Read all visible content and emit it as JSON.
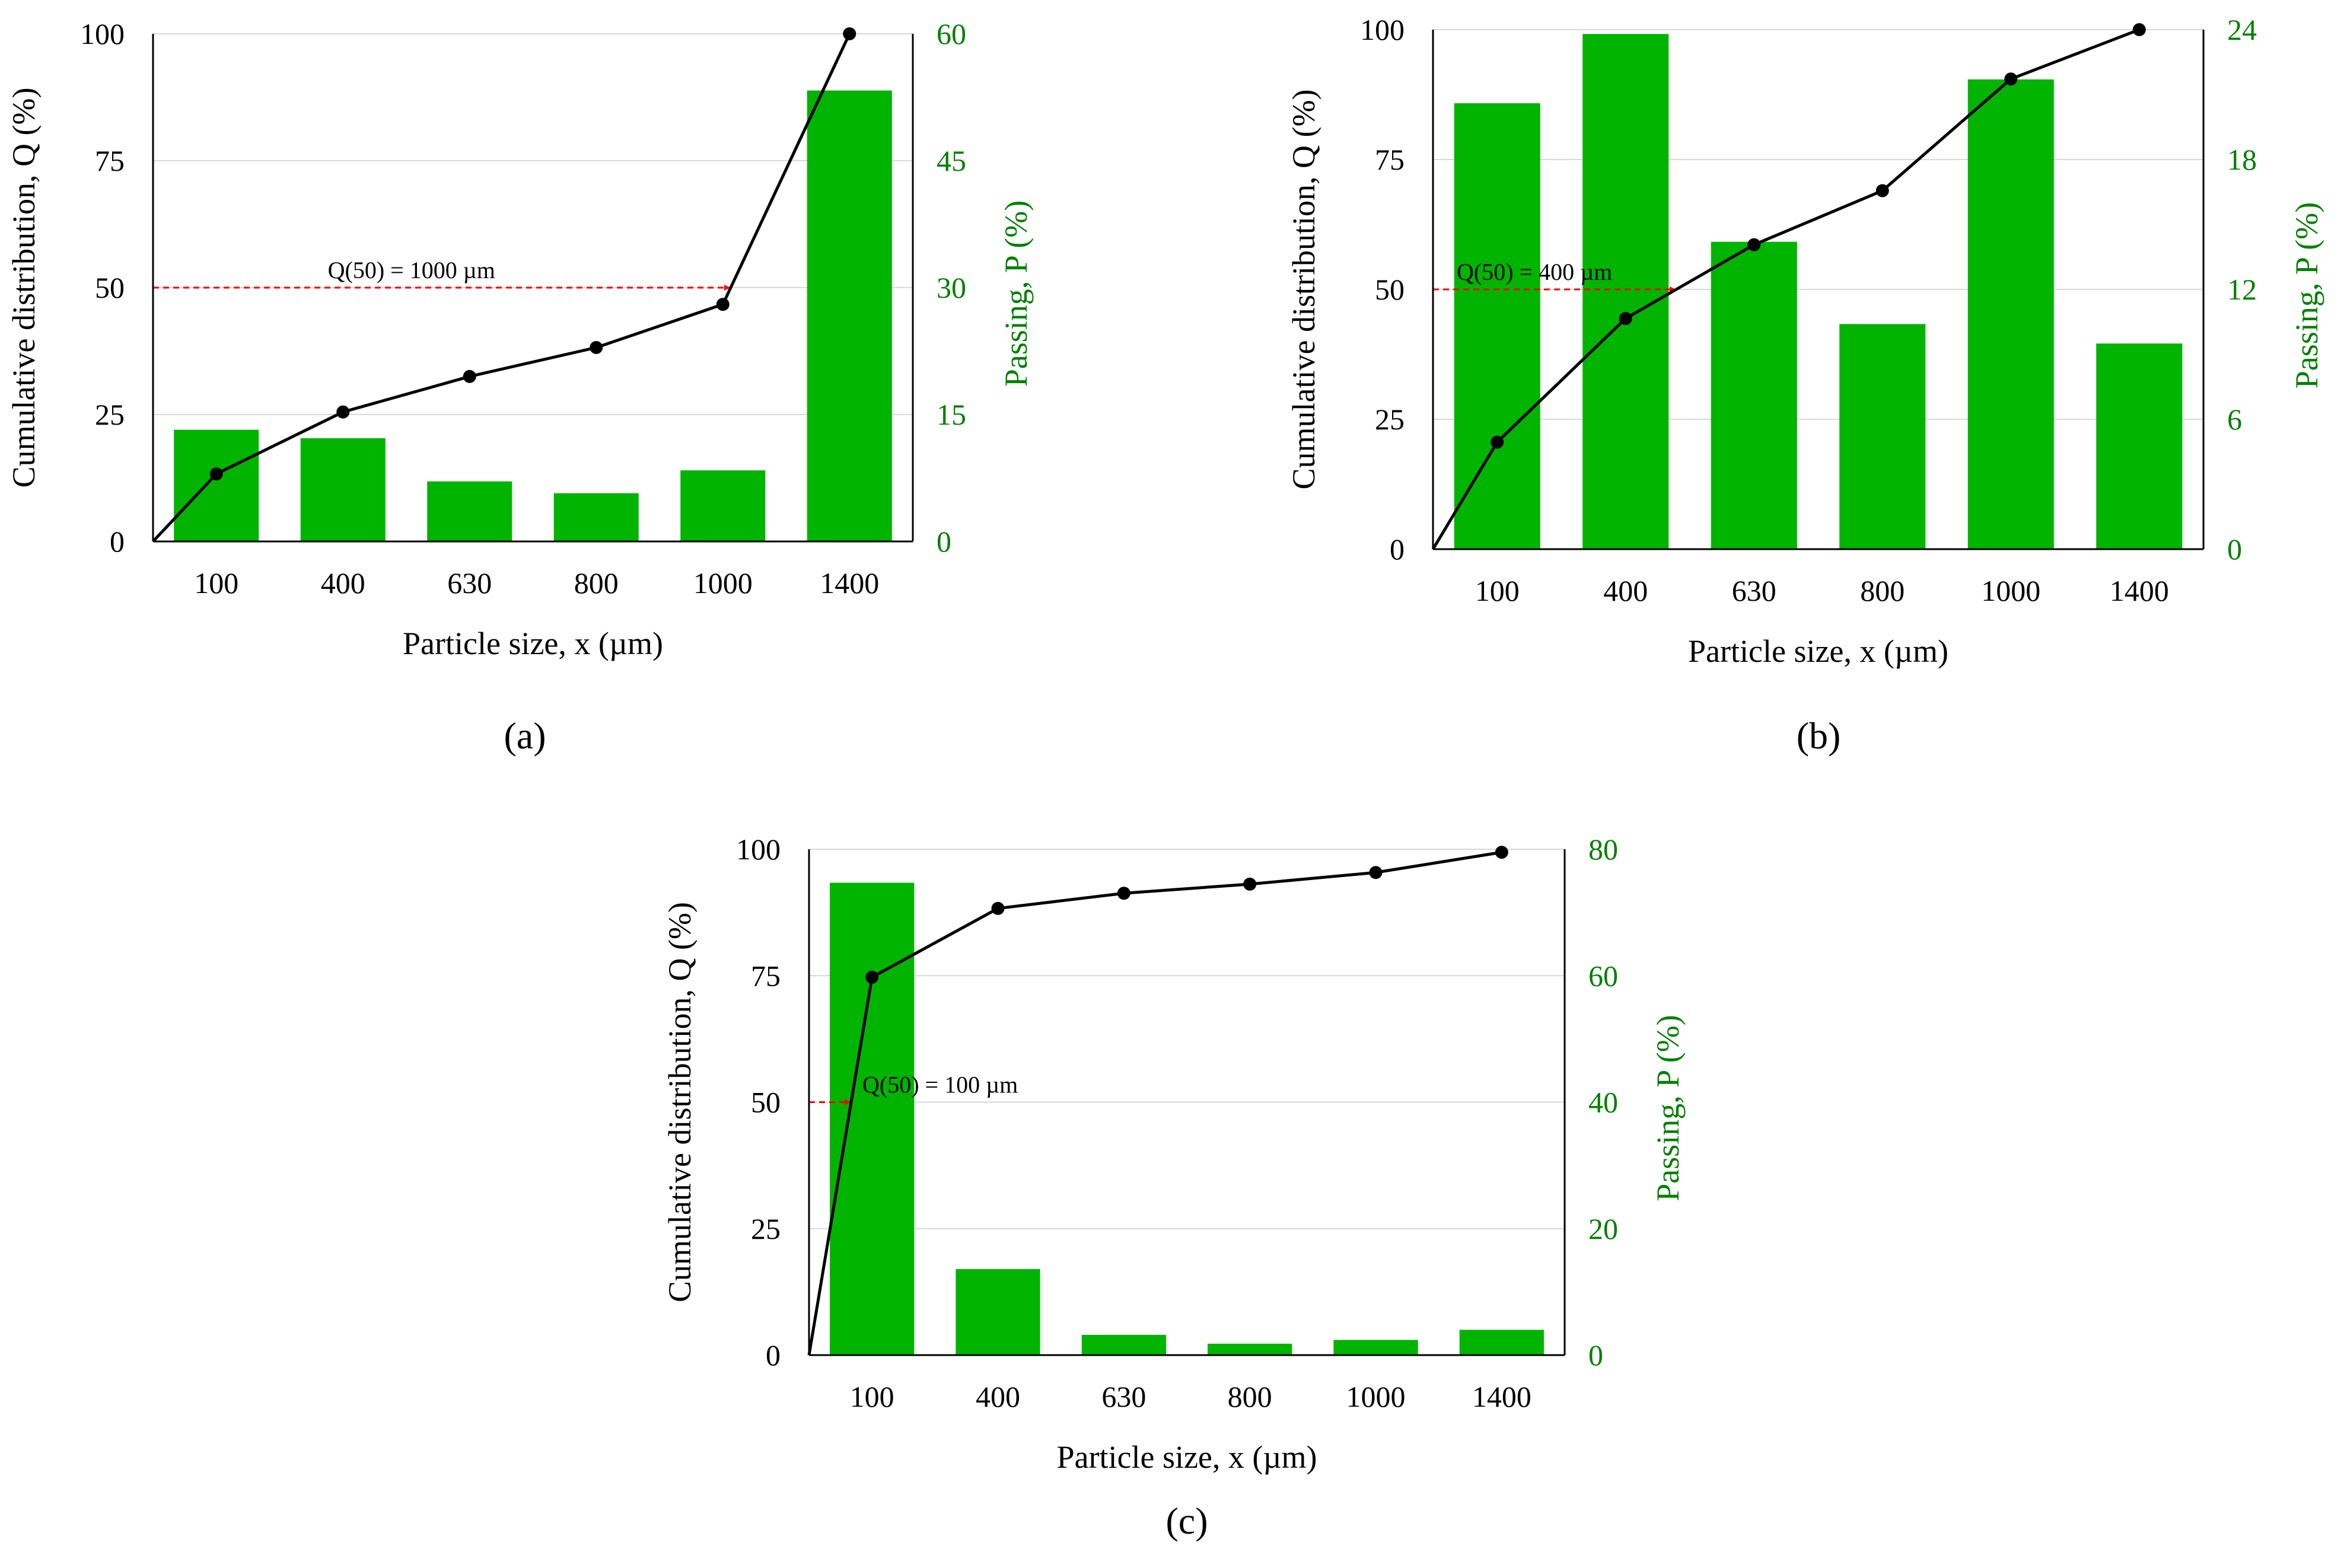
{
  "colors": {
    "bar": "#00B400",
    "line": "#000000",
    "secondary_axis": "#008000",
    "arrow": "#FF0000",
    "grid": "#D9D9D9"
  },
  "chart_data": [
    {
      "panel": "a",
      "panel_label": "(a)",
      "type": "bar",
      "categories": [
        "100",
        "400",
        "630",
        "800",
        "1000",
        "1400"
      ],
      "xlabel": "Particle size, x (µm)",
      "ylabel": "Cumulative distribution, Q (%)",
      "y2label": "Passing, P (%)",
      "ylim": [
        0,
        100
      ],
      "yticks": [
        0,
        25,
        50,
        75,
        100
      ],
      "y2lim": [
        0,
        60
      ],
      "y2ticks": [
        0,
        15,
        30,
        45,
        60
      ],
      "grid": true,
      "series": [
        {
          "type": "bar",
          "axis": "y2",
          "values": [
            13.2,
            12.2,
            7.1,
            5.7,
            8.4,
            53.3
          ]
        },
        {
          "type": "line",
          "axis": "y",
          "values": [
            13.3,
            25.5,
            32.5,
            38.2,
            46.7,
            100
          ]
        }
      ],
      "annotation": {
        "text": "Q(50) = 1000 µm",
        "q": 50,
        "target_index": 4
      }
    },
    {
      "panel": "b",
      "panel_label": "(b)",
      "type": "bar",
      "categories": [
        "100",
        "400",
        "630",
        "800",
        "1000",
        "1400"
      ],
      "xlabel": "Particle size, x (µm)",
      "ylabel": "Cumulative distribution, Q (%)",
      "y2label": "Passing, P (%)",
      "ylim": [
        0,
        100
      ],
      "yticks": [
        0,
        25,
        50,
        75,
        100
      ],
      "y2lim": [
        0,
        24
      ],
      "y2ticks": [
        0,
        6,
        12,
        18,
        24
      ],
      "grid": true,
      "series": [
        {
          "type": "bar",
          "axis": "y2",
          "values": [
            20.6,
            23.8,
            14.2,
            10.4,
            21.7,
            9.5
          ]
        },
        {
          "type": "line",
          "axis": "y",
          "values": [
            20.6,
            44.4,
            58.6,
            69.0,
            90.5,
            100
          ]
        }
      ],
      "annotation": {
        "text": "Q(50) = 400 µm",
        "q": 50,
        "target_index": 1
      }
    },
    {
      "panel": "c",
      "panel_label": "(c)",
      "type": "bar",
      "categories": [
        "100",
        "400",
        "630",
        "800",
        "1000",
        "1400"
      ],
      "xlabel": "Particle size, x (µm)",
      "ylabel": "Cumulative distribution, Q (%)",
      "y2label": "Passing, P (%)",
      "ylim": [
        0,
        100
      ],
      "yticks": [
        0,
        25,
        50,
        75,
        100
      ],
      "y2lim": [
        0,
        80
      ],
      "y2ticks": [
        0,
        20,
        40,
        60,
        80
      ],
      "grid": true,
      "series": [
        {
          "type": "bar",
          "axis": "y2",
          "values": [
            74.7,
            13.6,
            3.2,
            1.8,
            2.4,
            4.0
          ]
        },
        {
          "type": "line",
          "axis": "y",
          "values": [
            74.7,
            88.3,
            91.3,
            93.1,
            95.4,
            99.4
          ]
        }
      ],
      "annotation": {
        "text": "Q(50) = 100 µm",
        "q": 50,
        "target_index": 0
      }
    }
  ]
}
